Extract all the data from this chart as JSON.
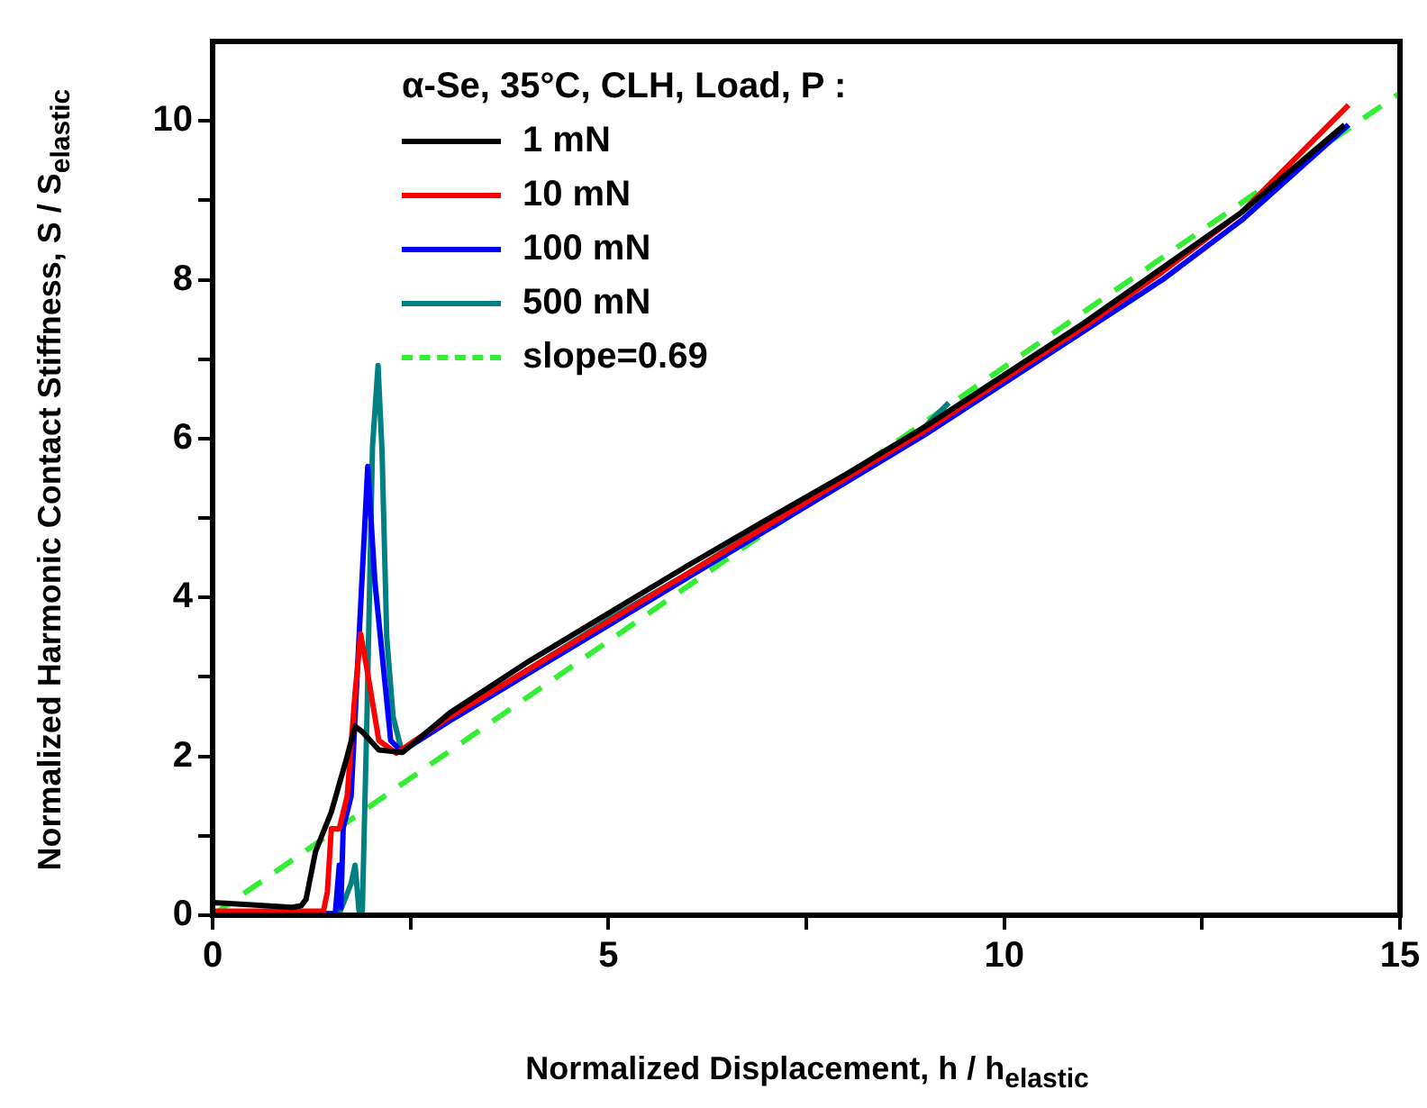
{
  "chart_data": {
    "type": "line",
    "xlabel": "Normalized Displacement, h / h$_{elastic}$",
    "ylabel": "Normalized Harmonic Contact Stiffness, S / S$_{elastic}$",
    "legend_title": "α-Se, 35°C, CLH, Load, P :",
    "legend": "top left",
    "grid": false,
    "marker": "none",
    "xlim": [
      0,
      15
    ],
    "ylim": [
      0,
      11
    ],
    "xticks": [
      0,
      {
        "value": 2.5,
        "label": null
      },
      5,
      {
        "value": 7.5,
        "label": null
      },
      10,
      {
        "value": 12.5,
        "label": null
      },
      15
    ],
    "yticks": [
      0,
      {
        "value": 1,
        "label": null
      },
      2,
      {
        "value": 3,
        "label": null
      },
      4,
      {
        "value": 5,
        "label": null
      },
      6,
      {
        "value": 7,
        "label": null
      },
      8,
      {
        "value": 9,
        "label": null
      },
      10
    ],
    "series": [
      {
        "name": "1 mN",
        "color": "#000000",
        "x": [
          0,
          0.5,
          1.0,
          1.12,
          1.18,
          1.3,
          1.5,
          1.7,
          1.8,
          1.9,
          2.1,
          2.4,
          3,
          4,
          5,
          6,
          7,
          8,
          9,
          10,
          11,
          12,
          13,
          14.3
        ],
        "values": [
          0.16,
          0.13,
          0.1,
          0.12,
          0.2,
          0.8,
          1.3,
          2.0,
          2.38,
          2.3,
          2.08,
          2.05,
          2.55,
          3.2,
          3.8,
          4.4,
          4.98,
          5.55,
          6.15,
          6.8,
          7.45,
          8.15,
          8.85,
          9.95
        ]
      },
      {
        "name": "10 mN",
        "color": "#ff0000",
        "x": [
          0,
          1.0,
          1.4,
          1.45,
          1.5,
          1.6,
          1.7,
          1.8,
          1.87,
          1.95,
          2.1,
          2.32,
          3,
          4,
          5,
          6,
          7,
          8,
          9,
          10,
          11,
          12,
          13,
          14.35
        ],
        "values": [
          0.05,
          0.05,
          0.05,
          0.3,
          1.09,
          1.09,
          1.5,
          2.8,
          3.54,
          3.1,
          2.2,
          2.04,
          2.5,
          3.1,
          3.7,
          4.3,
          4.9,
          5.5,
          6.1,
          6.75,
          7.4,
          8.1,
          8.85,
          10.2
        ]
      },
      {
        "name": "100 mN",
        "color": "#0000ff",
        "x": [
          0,
          1.55,
          1.6,
          1.62,
          1.65,
          1.75,
          1.85,
          1.96,
          2.05,
          2.25,
          2.39,
          3,
          4,
          5,
          6,
          7,
          8,
          9,
          10,
          11,
          12,
          13,
          14.35
        ],
        "values": [
          0.02,
          0.02,
          0.63,
          0.1,
          1.1,
          1.5,
          3.5,
          5.65,
          4.2,
          2.2,
          2.06,
          2.45,
          3.05,
          3.65,
          4.25,
          4.85,
          5.45,
          6.05,
          6.7,
          7.35,
          8.0,
          8.75,
          9.95
        ]
      },
      {
        "name": "500 mN",
        "color": "#008080",
        "x": [
          0,
          1.0,
          1.6,
          1.75,
          1.8,
          1.85,
          1.89,
          1.95,
          2.02,
          2.09,
          2.14,
          2.2,
          2.28,
          2.39,
          3,
          4,
          5,
          6,
          7,
          8,
          9,
          9.3
        ],
        "values": [
          0.02,
          0.02,
          0.02,
          0.4,
          0.63,
          0.05,
          0,
          2.5,
          5.9,
          6.92,
          5.85,
          3.5,
          2.5,
          2.06,
          2.5,
          3.1,
          3.72,
          4.3,
          4.92,
          5.5,
          6.15,
          6.45
        ]
      },
      {
        "name": "slope=0.69",
        "type": "line",
        "line_style": "dashed",
        "color": "#33ee33",
        "x": [
          0,
          15
        ],
        "values": [
          0,
          10.35
        ]
      }
    ]
  }
}
